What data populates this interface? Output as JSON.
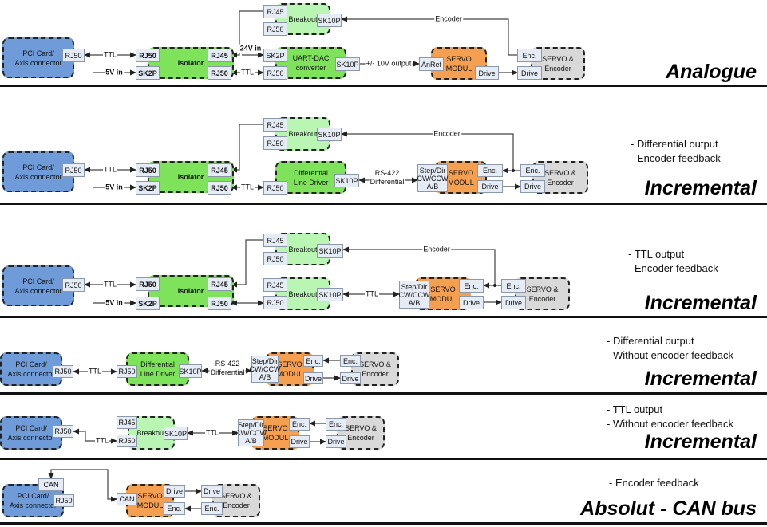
{
  "colors": {
    "pci": "#6f9bd8",
    "isolator": "#7ee35a",
    "breakout": "#b9f6b3",
    "servo_modul": "#f5a050",
    "servo_encoder": "#d9d9d9"
  },
  "sections": [
    {
      "title": "Analogue",
      "notes": [],
      "pci": "PCI Card/\nAxis connector",
      "pci_rj50": "RJ50",
      "ttl1": "TTL",
      "iso": "Isolator",
      "iso_rj50": "RJ50",
      "iso_sk2p": "SK2P",
      "iso_rj45": "RJ45",
      "iso_rj50b": "RJ50",
      "v5": "5V in",
      "v24": "24V in",
      "bo": "Breakout",
      "bo_rj45": "RJ45",
      "bo_rj50": "RJ50",
      "bo_sk10p": "SK10P",
      "ttl2": "TTL",
      "dac": "UART-DAC\nconverter",
      "dac_sk2p": "SK2P",
      "dac_rj50": "RJ50",
      "dac_sk10p": "SK10P",
      "out": "+/- 10V output",
      "servo": "SERVO\nMODUL",
      "anref": "AnRef",
      "drive": "Drive",
      "se": "SERVO &\nEncoder",
      "se_enc": "Enc.",
      "se_drive": "Drive",
      "encoder": "Encoder"
    },
    {
      "title": "Incremental",
      "notes": [
        "- Differential output",
        "- Encoder feedback"
      ],
      "pci": "PCI Card/\nAxis connector",
      "pci_rj50": "RJ50",
      "ttl1": "TTL",
      "iso": "Isolator",
      "iso_rj50": "RJ50",
      "iso_sk2p": "SK2P",
      "iso_rj45": "RJ45",
      "iso_rj50b": "RJ50",
      "v5": "5V in",
      "bo": "Breakout",
      "bo_rj45": "RJ45",
      "bo_rj50": "RJ50",
      "bo_sk10p": "SK10P",
      "ttl2": "TTL",
      "dld": "Differential\nLine Driver",
      "dld_rj50": "RJ50",
      "dld_sk10p": "SK10P",
      "rs422": "RS-422\nDifferential",
      "servo": "SERVO\nMODUL",
      "stepdir": "Step/Dir\nCW/CCW\nA/B",
      "enc": "Enc.",
      "drive": "Drive",
      "se": "SERVO &\nEncoder",
      "se_enc": "Enc.",
      "se_drive": "Drive",
      "encoder": "Encoder"
    },
    {
      "title": "Incremental",
      "notes": [
        "- TTL output",
        "- Encoder feedback"
      ],
      "pci": "PCI Card/\nAxis connector",
      "pci_rj50": "RJ50",
      "ttl1": "TTL",
      "iso": "Isolator",
      "iso_rj50": "RJ50",
      "iso_sk2p": "SK2P",
      "iso_rj45": "RJ45",
      "iso_rj50b": "RJ50",
      "v5": "5V in",
      "bo": "Breakout",
      "bo_rj45": "RJ45",
      "bo_rj50": "RJ50",
      "bo_sk10p": "SK10P",
      "bo2": "Breakout",
      "bo2_rj45": "RJ45",
      "bo2_rj50": "RJ50",
      "bo2_sk10p": "SK10P",
      "ttl3": "TTL",
      "servo": "SERVO\nMODUL",
      "stepdir": "Step/Dir\nCW/CCW\nA/B",
      "enc": "Enc.",
      "drive": "Drive",
      "se": "SERVO &\nEncoder",
      "se_enc": "Enc.",
      "se_drive": "Drive",
      "encoder": "Encoder"
    },
    {
      "title": "Incremental",
      "notes": [
        "- Differential output",
        "- Without encoder feedback"
      ],
      "pci": "PCI Card/\nAxis connector",
      "pci_rj50": "RJ50",
      "ttl": "TTL",
      "dld": "Differential\nLine Driver",
      "dld_rj50": "RJ50",
      "dld_sk10p": "SK10P",
      "rs422": "RS-422\nDifferential",
      "servo": "SERVO\nMODUL",
      "stepdir": "Step/Dir\nCW/CCW\nA/B",
      "enc": "Enc.",
      "drive": "Drive",
      "se": "SERVO &\nEncoder",
      "se_enc": "Enc.",
      "se_drive": "Drive"
    },
    {
      "title": "Incremental",
      "notes": [
        "- TTL output",
        "- Without encoder feedback"
      ],
      "pci": "PCI Card/\nAxis connector",
      "pci_rj50": "RJ50",
      "ttl": "TTL",
      "bo": "Breakout",
      "bo_rj45": "RJ45",
      "bo_rj50": "RJ50",
      "bo_sk10p": "SK10P",
      "ttl2": "TTL",
      "servo": "SERVO\nMODUL",
      "stepdir": "Step/Dir\nCW/CCW\nA/B",
      "enc": "Enc.",
      "drive": "Drive",
      "se": "SERVO &\nEncoder",
      "se_enc": "Enc.",
      "se_drive": "Drive"
    },
    {
      "title": "Absolut - CAN bus",
      "notes": [
        "- Encoder feedback"
      ],
      "pci": "PCI Card/\nAxis connector",
      "can": "CAN",
      "pci_rj50": "RJ50",
      "servo": "SERVO\nMODUL",
      "can2": "CAN",
      "drive": "Drive",
      "enc": "Enc.",
      "se": "SERVO &\nEncoder",
      "se_drive": "Drive",
      "se_enc": "Enc."
    }
  ]
}
